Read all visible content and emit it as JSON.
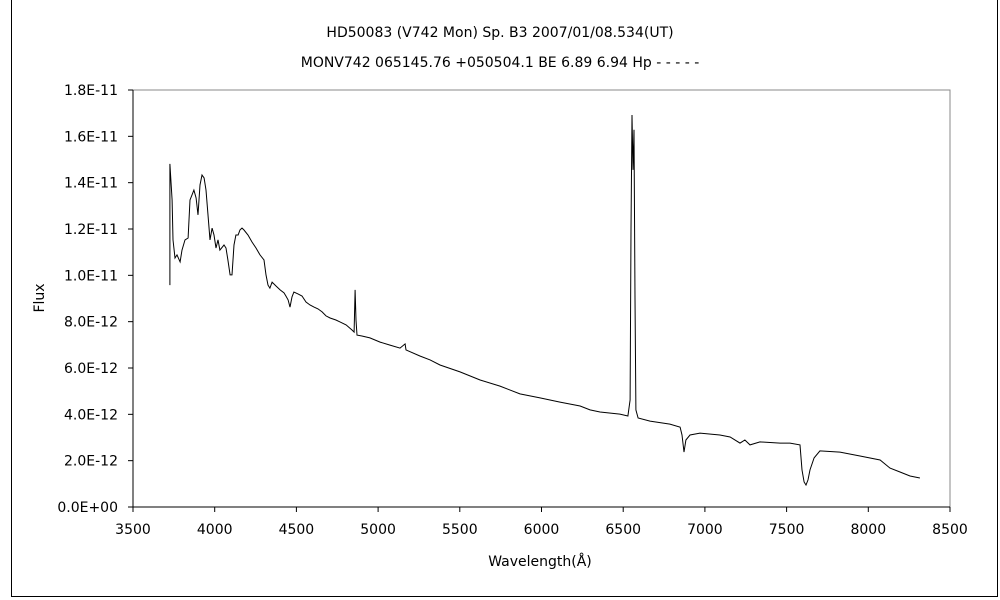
{
  "chart_data": {
    "type": "line",
    "title": "HD50083 (V742 Mon)   Sp. B3    2007/01/08.534(UT)",
    "subtitle": "MONV742 065145.76 +050504.1 BE 6.89 6.94 Hp - - - - -",
    "xlabel": "Wavelength(Å)",
    "ylabel": "Flux",
    "xlim": [
      3500,
      8500
    ],
    "ylim": [
      0,
      1.8e-11
    ],
    "xticks": [
      "3500",
      "4000",
      "4500",
      "5000",
      "5500",
      "6000",
      "6500",
      "7000",
      "7500",
      "8000",
      "8500"
    ],
    "yticks": [
      "0.0E+00",
      "2.0E-12",
      "4.0E-12",
      "6.0E-12",
      "8.0E-12",
      "1.0E-11",
      "1.2E-11",
      "1.4E-11",
      "1.6E-11",
      "1.8E-11"
    ],
    "grid": false,
    "y_unit_scale": 1e-12,
    "series": [
      {
        "name": "Flux",
        "color": "#000000",
        "points": [
          [
            3726,
            9.58
          ],
          [
            3726,
            14.81
          ],
          [
            3739,
            13.25
          ],
          [
            3745,
            11.53
          ],
          [
            3757,
            10.75
          ],
          [
            3769,
            10.88
          ],
          [
            3788,
            10.58
          ],
          [
            3800,
            11.09
          ],
          [
            3818,
            11.53
          ],
          [
            3837,
            11.61
          ],
          [
            3849,
            13.25
          ],
          [
            3861,
            13.47
          ],
          [
            3873,
            13.68
          ],
          [
            3886,
            13.34
          ],
          [
            3898,
            12.61
          ],
          [
            3910,
            13.9
          ],
          [
            3922,
            14.33
          ],
          [
            3935,
            14.2
          ],
          [
            3947,
            13.68
          ],
          [
            3959,
            12.61
          ],
          [
            3971,
            11.53
          ],
          [
            3984,
            12.04
          ],
          [
            3996,
            11.74
          ],
          [
            4008,
            11.18
          ],
          [
            4020,
            11.53
          ],
          [
            4032,
            11.09
          ],
          [
            4057,
            11.31
          ],
          [
            4069,
            11.18
          ],
          [
            4081,
            10.66
          ],
          [
            4094,
            10.02
          ],
          [
            4106,
            10.02
          ],
          [
            4118,
            11.31
          ],
          [
            4130,
            11.74
          ],
          [
            4143,
            11.74
          ],
          [
            4155,
            11.96
          ],
          [
            4167,
            12.04
          ],
          [
            4179,
            11.96
          ],
          [
            4204,
            11.74
          ],
          [
            4228,
            11.44
          ],
          [
            4253,
            11.18
          ],
          [
            4277,
            10.88
          ],
          [
            4302,
            10.66
          ],
          [
            4314,
            10.02
          ],
          [
            4326,
            9.58
          ],
          [
            4338,
            9.45
          ],
          [
            4351,
            9.71
          ],
          [
            4375,
            9.54
          ],
          [
            4400,
            9.37
          ],
          [
            4424,
            9.24
          ],
          [
            4436,
            9.11
          ],
          [
            4449,
            8.94
          ],
          [
            4461,
            8.63
          ],
          [
            4473,
            9.07
          ],
          [
            4485,
            9.28
          ],
          [
            4510,
            9.2
          ],
          [
            4534,
            9.11
          ],
          [
            4559,
            8.85
          ],
          [
            4583,
            8.72
          ],
          [
            4608,
            8.63
          ],
          [
            4632,
            8.55
          ],
          [
            4657,
            8.42
          ],
          [
            4681,
            8.25
          ],
          [
            4706,
            8.16
          ],
          [
            4742,
            8.07
          ],
          [
            4767,
            7.99
          ],
          [
            4804,
            7.86
          ],
          [
            4840,
            7.64
          ],
          [
            4853,
            7.55
          ],
          [
            4859,
            9.37
          ],
          [
            4865,
            8.07
          ],
          [
            4871,
            7.42
          ],
          [
            4901,
            7.38
          ],
          [
            4950,
            7.3
          ],
          [
            5012,
            7.12
          ],
          [
            5073,
            6.99
          ],
          [
            5134,
            6.86
          ],
          [
            5165,
            7.04
          ],
          [
            5171,
            6.78
          ],
          [
            5256,
            6.52
          ],
          [
            5318,
            6.35
          ],
          [
            5379,
            6.13
          ],
          [
            5501,
            5.83
          ],
          [
            5624,
            5.48
          ],
          [
            5746,
            5.22
          ],
          [
            5868,
            4.88
          ],
          [
            5991,
            4.71
          ],
          [
            6113,
            4.53
          ],
          [
            6236,
            4.36
          ],
          [
            6297,
            4.19
          ],
          [
            6358,
            4.1
          ],
          [
            6480,
            4.01
          ],
          [
            6529,
            3.93
          ],
          [
            6542,
            4.62
          ],
          [
            6548,
            11.96
          ],
          [
            6554,
            16.92
          ],
          [
            6560,
            14.55
          ],
          [
            6566,
            16.28
          ],
          [
            6572,
            9.02
          ],
          [
            6578,
            4.19
          ],
          [
            6591,
            3.84
          ],
          [
            6664,
            3.71
          ],
          [
            6786,
            3.58
          ],
          [
            6848,
            3.45
          ],
          [
            6860,
            3.11
          ],
          [
            6872,
            2.37
          ],
          [
            6884,
            2.89
          ],
          [
            6909,
            3.11
          ],
          [
            6970,
            3.19
          ],
          [
            7092,
            3.11
          ],
          [
            7154,
            3.02
          ],
          [
            7215,
            2.76
          ],
          [
            7245,
            2.89
          ],
          [
            7276,
            2.68
          ],
          [
            7337,
            2.81
          ],
          [
            7460,
            2.76
          ],
          [
            7521,
            2.76
          ],
          [
            7582,
            2.68
          ],
          [
            7594,
            1.6
          ],
          [
            7607,
            1.08
          ],
          [
            7619,
            0.95
          ],
          [
            7631,
            1.17
          ],
          [
            7643,
            1.6
          ],
          [
            7668,
            2.12
          ],
          [
            7704,
            2.42
          ],
          [
            7827,
            2.37
          ],
          [
            7949,
            2.2
          ],
          [
            8072,
            2.03
          ],
          [
            8133,
            1.68
          ],
          [
            8194,
            1.51
          ],
          [
            8255,
            1.34
          ],
          [
            8316,
            1.25
          ]
        ]
      }
    ]
  }
}
